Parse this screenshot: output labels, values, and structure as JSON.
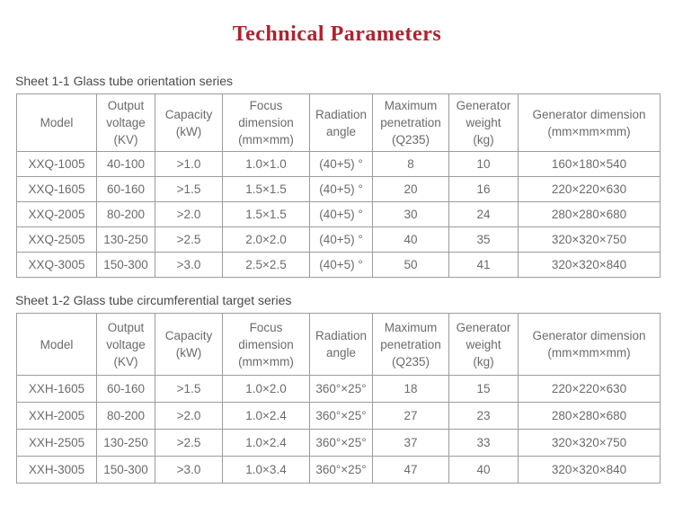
{
  "page": {
    "title": "Technical Parameters"
  },
  "colors": {
    "title_red": "#b3202e",
    "table_border": "#9c9c9c",
    "cell_text": "#6b6b6b",
    "caption_text": "#4a4a4a"
  },
  "tables": [
    {
      "caption": "Sheet 1-1 Glass tube orientation series",
      "headers": [
        "Model",
        "Output\nvoltage\n(KV)",
        "Capacity\n(kW)",
        "Focus\ndimension\n(mm×mm)",
        "Radiation\nangle",
        "Maximum\npenetration\n(Q235)",
        "Generator\nweight\n(kg)",
        "Generator dimension\n(mm×mm×mm)"
      ],
      "rows": [
        [
          "XXQ-1005",
          "40-100",
          ">1.0",
          "1.0×1.0",
          "(40+5) °",
          "8",
          "10",
          "160×180×540"
        ],
        [
          "XXQ-1605",
          "60-160",
          ">1.5",
          "1.5×1.5",
          "(40+5) °",
          "20",
          "16",
          "220×220×630"
        ],
        [
          "XXQ-2005",
          "80-200",
          ">2.0",
          "1.5×1.5",
          "(40+5) °",
          "30",
          "24",
          "280×280×680"
        ],
        [
          "XXQ-2505",
          "130-250",
          ">2.5",
          "2.0×2.0",
          "(40+5) °",
          "40",
          "35",
          "320×320×750"
        ],
        [
          "XXQ-3005",
          "150-300",
          ">3.0",
          "2.5×2.5",
          "(40+5) °",
          "50",
          "41",
          "320×320×840"
        ]
      ]
    },
    {
      "caption": "Sheet 1-2 Glass tube circumferential target series",
      "headers": [
        "Model",
        "Output\nvoltage\n(KV)",
        "Capacity\n(kW)",
        "Focus\ndimension\n(mm×mm)",
        "Radiation\nangle",
        "Maximum\npenetration\n(Q235)",
        "Generator\nweight\n(kg)",
        "Generator dimension\n(mm×mm×mm)"
      ],
      "rows": [
        [
          "XXH-1605",
          "60-160",
          ">1.5",
          "1.0×2.0",
          "360°×25°",
          "18",
          "15",
          "220×220×630"
        ],
        [
          "XXH-2005",
          "80-200",
          ">2.0",
          "1.0×2.4",
          "360°×25°",
          "27",
          "23",
          "280×280×680"
        ],
        [
          "XXH-2505",
          "130-250",
          ">2.5",
          "1.0×2.4",
          "360°×25°",
          "37",
          "33",
          "320×320×750"
        ],
        [
          "XXH-3005",
          "150-300",
          ">3.0",
          "1.0×3.4",
          "360°×25°",
          "47",
          "40",
          "320×320×840"
        ]
      ]
    }
  ]
}
